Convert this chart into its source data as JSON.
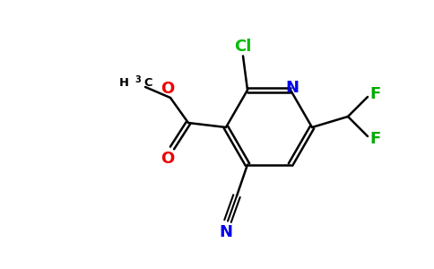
{
  "background_color": "#ffffff",
  "figsize": [
    4.84,
    3.0
  ],
  "dpi": 100,
  "colors": {
    "N": "#0000ee",
    "O": "#ee0000",
    "Cl": "#00bb00",
    "F": "#00aa00",
    "C": "#000000",
    "bond": "#000000"
  },
  "font_size": 13,
  "bond_lw": 1.8
}
